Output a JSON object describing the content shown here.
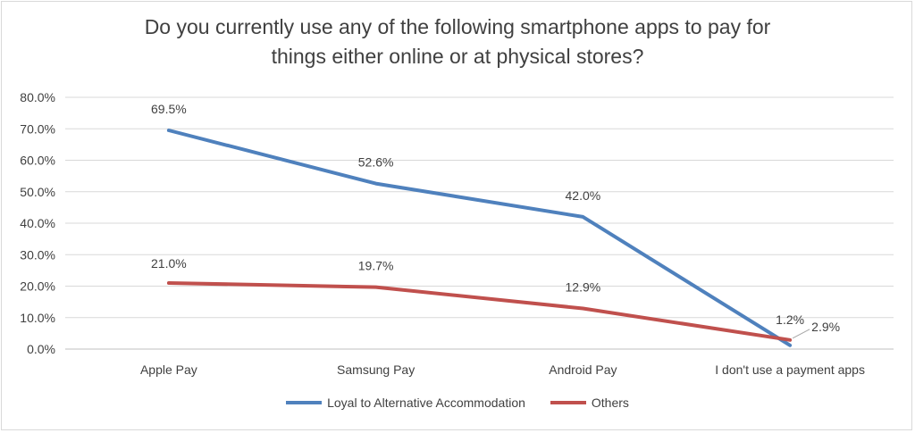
{
  "chart_data": {
    "type": "line",
    "title_lines": [
      "Do you currently use any of the following smartphone apps to pay for",
      "things either online or at physical stores?"
    ],
    "categories": [
      "Apple Pay",
      "Samsung Pay",
      "Android Pay",
      "I don't use a payment apps"
    ],
    "series": [
      {
        "name": "Loyal to Alternative Accommodation",
        "values": [
          69.5,
          52.6,
          42.0,
          1.2
        ],
        "labels": [
          "69.5%",
          "52.6%",
          "42.0%",
          "1.2%"
        ],
        "color": "#4f81bd"
      },
      {
        "name": "Others",
        "values": [
          21.0,
          19.7,
          12.9,
          2.9
        ],
        "labels": [
          "21.0%",
          "19.7%",
          "12.9%",
          "2.9%"
        ],
        "color": "#c0504d"
      }
    ],
    "y_ticks": [
      "0.0%",
      "10.0%",
      "20.0%",
      "30.0%",
      "40.0%",
      "50.0%",
      "60.0%",
      "70.0%",
      "80.0%"
    ],
    "ylim": [
      0,
      80
    ],
    "grid": true,
    "legend_position": "bottom"
  }
}
